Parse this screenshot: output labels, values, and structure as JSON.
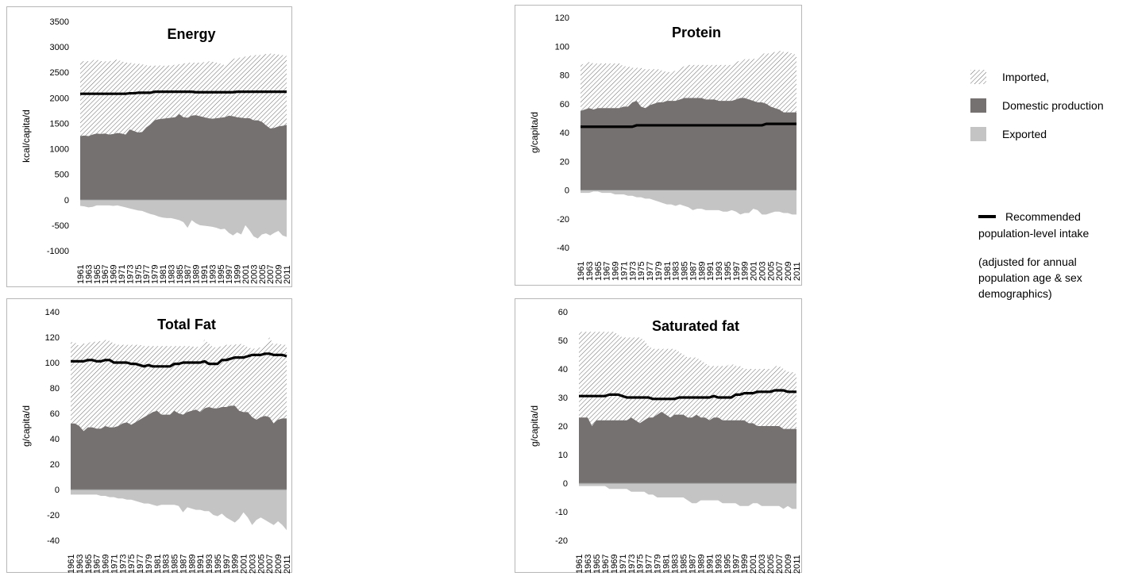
{
  "legend": {
    "imported": "Imported,",
    "domestic": "Domestic production",
    "exported": "Exported",
    "recommended_line1": "Recommended",
    "recommended_line2": "population-level intake",
    "note_line1": "(adjusted for annual",
    "note_line2": "population age & sex",
    "note_line3": "demographics)"
  },
  "colors": {
    "imported_hatch": "#6a6a6a",
    "domestic": "#767171",
    "exported": "#c4c4c4",
    "recommended": "#000000"
  },
  "chart_data": [
    {
      "type": "area",
      "title": "Energy",
      "ylabel": "kcal/capita/d",
      "ylim": [
        -1000,
        3500
      ],
      "yticks": [
        -1000,
        -500,
        0,
        500,
        1000,
        1500,
        2000,
        2500,
        3000,
        3500
      ],
      "x_start": 1961,
      "x_end": 2011,
      "x_label_step": 2,
      "series": [
        {
          "name": "Domestic production",
          "values": [
            1250,
            1260,
            1250,
            1280,
            1300,
            1290,
            1300,
            1280,
            1290,
            1310,
            1300,
            1280,
            1380,
            1350,
            1320,
            1330,
            1420,
            1480,
            1560,
            1580,
            1590,
            1600,
            1610,
            1620,
            1680,
            1620,
            1610,
            1650,
            1660,
            1640,
            1620,
            1600,
            1590,
            1600,
            1610,
            1620,
            1650,
            1640,
            1620,
            1610,
            1600,
            1600,
            1560,
            1560,
            1530,
            1460,
            1400,
            1410,
            1440,
            1450,
            1470
          ]
        },
        {
          "name": "Imported,",
          "values": [
            1470,
            1460,
            1470,
            1460,
            1450,
            1430,
            1420,
            1430,
            1450,
            1440,
            1420,
            1410,
            1310,
            1320,
            1350,
            1330,
            1220,
            1150,
            1070,
            1060,
            1040,
            1030,
            1030,
            1030,
            980,
            1050,
            1080,
            1040,
            1030,
            1050,
            1080,
            1120,
            1120,
            1090,
            1060,
            1020,
            1080,
            1120,
            1170,
            1180,
            1210,
            1220,
            1280,
            1280,
            1310,
            1400,
            1470,
            1450,
            1410,
            1390,
            1350
          ]
        },
        {
          "name": "Exported",
          "values": [
            -120,
            -130,
            -150,
            -140,
            -110,
            -110,
            -110,
            -110,
            -120,
            -110,
            -130,
            -150,
            -170,
            -190,
            -210,
            -220,
            -250,
            -280,
            -300,
            -330,
            -350,
            -360,
            -360,
            -380,
            -400,
            -440,
            -550,
            -400,
            -460,
            -500,
            -510,
            -520,
            -530,
            -550,
            -580,
            -570,
            -650,
            -700,
            -640,
            -680,
            -500,
            -600,
            -720,
            -760,
            -680,
            -660,
            -700,
            -650,
            -610,
            -700,
            -730
          ]
        },
        {
          "name": "Recommended population-level intake",
          "values": [
            2080,
            2080,
            2080,
            2080,
            2080,
            2080,
            2080,
            2080,
            2080,
            2080,
            2080,
            2080,
            2090,
            2090,
            2100,
            2100,
            2100,
            2100,
            2120,
            2120,
            2120,
            2120,
            2120,
            2120,
            2120,
            2120,
            2120,
            2120,
            2110,
            2110,
            2110,
            2110,
            2110,
            2110,
            2110,
            2110,
            2110,
            2110,
            2120,
            2120,
            2120,
            2120,
            2120,
            2120,
            2120,
            2120,
            2120,
            2120,
            2120,
            2120,
            2120
          ]
        }
      ]
    },
    {
      "type": "area",
      "title": "Protein",
      "ylabel": "g/capita/d",
      "ylim": [
        -40,
        120
      ],
      "yticks": [
        -40,
        -20,
        0,
        20,
        40,
        60,
        80,
        100,
        120
      ],
      "x_start": 1961,
      "x_end": 2011,
      "x_label_step": 2,
      "series": [
        {
          "name": "Domestic production",
          "values": [
            55,
            56,
            57,
            56,
            57,
            57,
            57,
            57,
            57,
            57,
            58,
            58,
            61,
            62,
            58,
            57,
            59,
            60,
            61,
            61,
            62,
            62,
            62,
            63,
            64,
            64,
            64,
            64,
            64,
            63,
            63,
            63,
            62,
            62,
            62,
            62,
            63,
            64,
            64,
            63,
            62,
            61,
            61,
            60,
            58,
            57,
            56,
            54,
            54,
            54,
            54
          ]
        },
        {
          "name": "Imported,",
          "values": [
            32,
            32,
            32,
            32,
            31,
            31,
            31,
            31,
            31,
            31,
            28,
            28,
            24,
            23,
            27,
            27,
            25,
            24,
            23,
            22,
            20,
            20,
            21,
            22,
            22,
            23,
            23,
            23,
            23,
            24,
            24,
            24,
            25,
            25,
            25,
            25,
            26,
            26,
            27,
            28,
            29,
            31,
            34,
            35,
            37,
            39,
            41,
            42,
            42,
            41,
            40
          ]
        },
        {
          "name": "Exported",
          "values": [
            -2,
            -2,
            -2,
            -1,
            -1,
            -2,
            -2,
            -2,
            -3,
            -3,
            -3,
            -4,
            -4,
            -5,
            -5,
            -6,
            -6,
            -7,
            -8,
            -9,
            -10,
            -10,
            -11,
            -10,
            -11,
            -12,
            -14,
            -13,
            -13,
            -14,
            -14,
            -14,
            -14,
            -15,
            -15,
            -14,
            -15,
            -17,
            -16,
            -16,
            -13,
            -14,
            -17,
            -17,
            -16,
            -15,
            -15,
            -16,
            -16,
            -17,
            -17
          ]
        },
        {
          "name": "Recommended population-level intake",
          "values": [
            44,
            44,
            44,
            44,
            44,
            44,
            44,
            44,
            44,
            44,
            44,
            44,
            44,
            45,
            45,
            45,
            45,
            45,
            45,
            45,
            45,
            45,
            45,
            45,
            45,
            45,
            45,
            45,
            45,
            45,
            45,
            45,
            45,
            45,
            45,
            45,
            45,
            45,
            45,
            45,
            45,
            45,
            45,
            46,
            46,
            46,
            46,
            46,
            46,
            46,
            46
          ]
        }
      ]
    },
    {
      "type": "area",
      "title": "Total Fat",
      "ylabel": "g/capita/d",
      "ylim": [
        -40,
        140
      ],
      "yticks": [
        -40,
        -20,
        0,
        20,
        40,
        60,
        80,
        100,
        120,
        140
      ],
      "x_start": 1961,
      "x_end": 2011,
      "x_label_step": 2,
      "series": [
        {
          "name": "Domestic production",
          "values": [
            52,
            52,
            50,
            46,
            49,
            49,
            48,
            48,
            50,
            49,
            49,
            50,
            52,
            53,
            51,
            53,
            55,
            57,
            59,
            61,
            62,
            59,
            59,
            59,
            62,
            60,
            59,
            61,
            62,
            63,
            61,
            64,
            65,
            64,
            64,
            65,
            65,
            66,
            66,
            62,
            61,
            61,
            57,
            55,
            57,
            58,
            57,
            52,
            55,
            56,
            56
          ]
        },
        {
          "name": "Imported,",
          "values": [
            64,
            64,
            63,
            69,
            66,
            68,
            68,
            69,
            68,
            68,
            66,
            64,
            62,
            61,
            63,
            61,
            59,
            56,
            54,
            52,
            51,
            54,
            54,
            54,
            51,
            53,
            54,
            52,
            51,
            49,
            52,
            54,
            50,
            48,
            48,
            48,
            49,
            48,
            48,
            53,
            53,
            51,
            54,
            56,
            55,
            55,
            63,
            62,
            60,
            58,
            58
          ]
        },
        {
          "name": "Exported",
          "values": [
            -4,
            -4,
            -4,
            -4,
            -4,
            -4,
            -4,
            -5,
            -5,
            -6,
            -6,
            -7,
            -7,
            -8,
            -8,
            -9,
            -10,
            -11,
            -11,
            -12,
            -13,
            -12,
            -12,
            -12,
            -12,
            -13,
            -18,
            -14,
            -15,
            -16,
            -16,
            -17,
            -17,
            -20,
            -21,
            -19,
            -22,
            -24,
            -26,
            -23,
            -18,
            -22,
            -28,
            -24,
            -22,
            -24,
            -26,
            -28,
            -25,
            -28,
            -32
          ]
        },
        {
          "name": "Recommended population-level intake",
          "values": [
            101,
            101,
            101,
            101,
            102,
            102,
            101,
            101,
            102,
            102,
            100,
            100,
            100,
            100,
            99,
            99,
            98,
            97,
            98,
            97,
            97,
            97,
            97,
            97,
            99,
            99,
            100,
            100,
            100,
            100,
            100,
            101,
            99,
            99,
            99,
            102,
            102,
            103,
            104,
            104,
            104,
            105,
            106,
            106,
            106,
            107,
            107,
            106,
            106,
            106,
            105
          ]
        }
      ]
    },
    {
      "type": "area",
      "title": "Saturated fat",
      "ylabel": "g/capita/d",
      "ylim": [
        -20,
        60
      ],
      "yticks": [
        -20,
        -10,
        0,
        10,
        20,
        30,
        40,
        50,
        60
      ],
      "x_start": 1961,
      "x_end": 2011,
      "x_label_step": 2,
      "series": [
        {
          "name": "Domestic production",
          "values": [
            23,
            23,
            23,
            20,
            22,
            22,
            22,
            22,
            22,
            22,
            22,
            22,
            23,
            22,
            21,
            22,
            23,
            23,
            24,
            25,
            24,
            23,
            24,
            24,
            24,
            23,
            23,
            24,
            23,
            23,
            22,
            23,
            23,
            22,
            22,
            22,
            22,
            22,
            22,
            21,
            21,
            20,
            20,
            20,
            20,
            20,
            20,
            19,
            19,
            19,
            19
          ]
        },
        {
          "name": "Imported,",
          "values": [
            30,
            30,
            30,
            33,
            31,
            31,
            31,
            31,
            31,
            30,
            29,
            29,
            28,
            29,
            30,
            28,
            25,
            24,
            23,
            22,
            23,
            24,
            23,
            22,
            21,
            21,
            21,
            20,
            20,
            19,
            19,
            18,
            18,
            19,
            19,
            20,
            19,
            19,
            18,
            19,
            19,
            20,
            20,
            20,
            20,
            21,
            21,
            21,
            20,
            20,
            19
          ]
        },
        {
          "name": "Exported",
          "values": [
            -1,
            -1,
            -1,
            -1,
            -1,
            -1,
            -1,
            -2,
            -2,
            -2,
            -2,
            -2,
            -3,
            -3,
            -3,
            -3,
            -4,
            -4,
            -5,
            -5,
            -5,
            -5,
            -5,
            -5,
            -5,
            -6,
            -7,
            -7,
            -6,
            -6,
            -6,
            -6,
            -6,
            -7,
            -7,
            -7,
            -7,
            -8,
            -8,
            -8,
            -7,
            -7,
            -8,
            -8,
            -8,
            -8,
            -8,
            -9,
            -8,
            -9,
            -9
          ]
        },
        {
          "name": "Recommended population-level intake",
          "values": [
            30.5,
            30.5,
            30.5,
            30.5,
            30.5,
            30.5,
            30.5,
            31,
            31,
            31,
            30.5,
            30,
            30,
            30,
            30,
            30,
            30,
            29.5,
            29.5,
            29.5,
            29.5,
            29.5,
            29.5,
            30,
            30,
            30,
            30,
            30,
            30,
            30,
            30,
            30.5,
            30,
            30,
            30,
            30,
            31,
            31,
            31.5,
            31.5,
            31.5,
            32,
            32,
            32,
            32,
            32.5,
            32.5,
            32.5,
            32,
            32,
            32
          ]
        }
      ]
    }
  ]
}
